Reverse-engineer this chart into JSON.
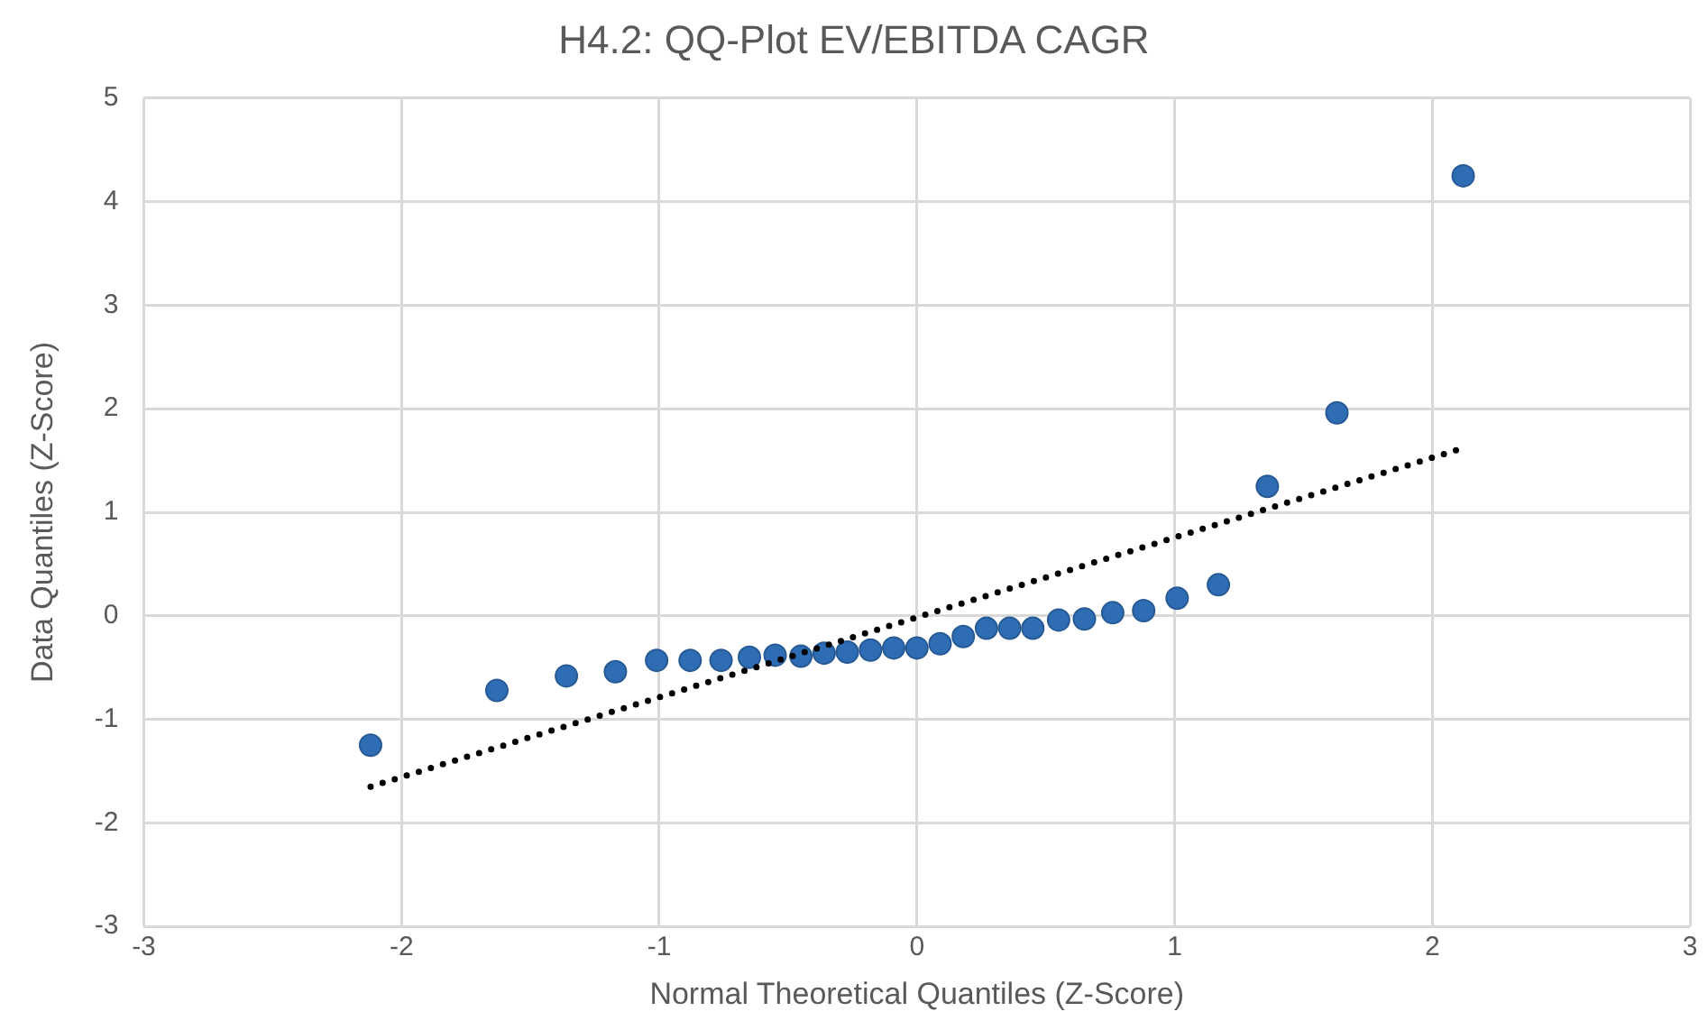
{
  "chart_data": {
    "type": "scatter",
    "title": "H4.2: QQ-Plot EV/EBITDA CAGR",
    "xlabel": "Normal Theoretical Quantiles (Z-Score)",
    "ylabel": "Data Quantiles (Z-Score)",
    "xlim": [
      -3,
      3
    ],
    "xticks": [
      -3,
      -2,
      -1,
      0,
      1,
      2,
      3
    ],
    "ylim": [
      -3,
      5
    ],
    "yticks": [
      -3,
      -2,
      -1,
      0,
      1,
      2,
      3,
      4,
      5
    ],
    "grid": true,
    "legend": false,
    "marker": "circle",
    "series": [
      {
        "color": "#2e6db4",
        "x": [
          -2.12,
          -1.63,
          -1.36,
          -1.17,
          -1.01,
          -0.88,
          -0.76,
          -0.65,
          -0.55,
          -0.45,
          -0.36,
          -0.27,
          -0.18,
          -0.09,
          0,
          0.09,
          0.18,
          0.27,
          0.36,
          0.45,
          0.55,
          0.65,
          0.76,
          0.88,
          1.01,
          1.17,
          1.36,
          1.63,
          2.12
        ],
        "values": [
          -1.25,
          -0.72,
          -0.58,
          -0.54,
          -0.43,
          -0.43,
          -0.43,
          -0.4,
          -0.38,
          -0.39,
          -0.36,
          -0.35,
          -0.33,
          -0.31,
          -0.31,
          -0.27,
          -0.2,
          -0.12,
          -0.12,
          -0.12,
          -0.04,
          -0.03,
          0.03,
          0.05,
          0.17,
          0.3,
          1.25,
          1.96,
          4.25
        ]
      },
      {
        "type": "line",
        "color": "#000000",
        "marker": "none",
        "line_style": "dotted",
        "x": [
          -2.12,
          2.12
        ],
        "values": [
          -1.65,
          1.62
        ]
      }
    ]
  }
}
